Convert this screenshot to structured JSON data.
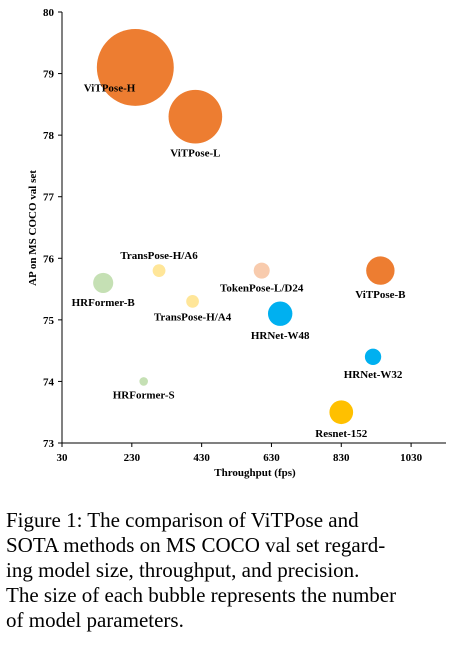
{
  "chart_data": {
    "type": "bubble",
    "title": "",
    "xlabel": "Throughput (fps)",
    "ylabel": "AP on MS COCO val set",
    "xlim": [
      30,
      1130
    ],
    "ylim": [
      73,
      80
    ],
    "xticks": [
      "30",
      "230",
      "430",
      "630",
      "830",
      "1030"
    ],
    "yticks": [
      "73",
      "74",
      "75",
      "76",
      "77",
      "78",
      "79",
      "80"
    ],
    "grid": false,
    "points": [
      {
        "label": "ViTPose-H",
        "x": 240,
        "y": 79.1,
        "size": 632,
        "color": "#ED7D31",
        "label_pos": "below-left"
      },
      {
        "label": "ViTPose-L",
        "x": 412,
        "y": 78.3,
        "size": 307,
        "color": "#ED7D31",
        "label_pos": "below"
      },
      {
        "label": "ViTPose-B",
        "x": 942,
        "y": 75.8,
        "size": 86,
        "color": "#ED7D31",
        "label_pos": "below"
      },
      {
        "label": "TransPose-H/A6",
        "x": 308,
        "y": 75.8,
        "size": 17.5,
        "color": "#FFE699",
        "label_pos": "above"
      },
      {
        "label": "TransPose-H/A4",
        "x": 404,
        "y": 75.3,
        "size": 17.3,
        "color": "#FFE699",
        "label_pos": "below"
      },
      {
        "label": "TokenPose-L/D24",
        "x": 602,
        "y": 75.8,
        "size": 27.5,
        "color": "#F8CBAD",
        "label_pos": "below"
      },
      {
        "label": "HRFormer-B",
        "x": 148,
        "y": 75.6,
        "size": 43.2,
        "color": "#C5E0B4",
        "label_pos": "below"
      },
      {
        "label": "HRFormer-S",
        "x": 264,
        "y": 74.0,
        "size": 7.8,
        "color": "#C5E0B4",
        "label_pos": "below"
      },
      {
        "label": "HRNet-W48",
        "x": 655,
        "y": 75.1,
        "size": 63.6,
        "color": "#00B0F0",
        "label_pos": "below"
      },
      {
        "label": "HRNet-W32",
        "x": 921,
        "y": 74.4,
        "size": 28.5,
        "color": "#00B0F0",
        "label_pos": "below"
      },
      {
        "label": "Resnet-152",
        "x": 830,
        "y": 73.5,
        "size": 60,
        "color": "#FFC000",
        "label_pos": "below"
      }
    ]
  },
  "caption": {
    "lines": [
      "Figure 1: The comparison of ViTPose and",
      "SOTA methods on MS COCO val set regard-",
      "ing model size, throughput, and precision.",
      "The size of each bubble represents the number",
      "of model parameters."
    ]
  }
}
